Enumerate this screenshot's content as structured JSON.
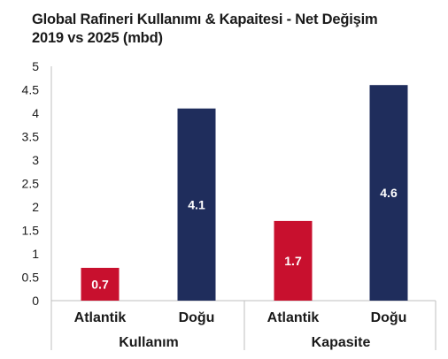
{
  "title_line1": "Global Rafineri Kullanımı & Kapaitesi - Net Değişim",
  "title_line2": "2019 vs 2025 (mbd)",
  "colors": {
    "atlantik": "#c8102e",
    "dogu": "#1f2d5c",
    "axis": "#bfbfbf"
  },
  "chart_data": {
    "type": "bar",
    "title": "Global Rafineri Kullanımı & Kapaitesi - Net Değişim",
    "subtitle": "2019 vs 2025 (mbd)",
    "ylim": [
      0,
      5
    ],
    "yticks": [
      "0",
      "0.5",
      "1",
      "1.5",
      "2",
      "2.5",
      "3",
      "3.5",
      "4",
      "4.5",
      "5"
    ],
    "grid": false,
    "groups": [
      {
        "name": "Kullanım",
        "categories": [
          "Atlantik",
          "Doğu"
        ],
        "values": [
          0.7,
          4.1
        ],
        "labels": [
          "0.7",
          "4.1"
        ]
      },
      {
        "name": "Kapasite",
        "categories": [
          "Atlantik",
          "Doğu"
        ],
        "values": [
          1.7,
          4.6
        ],
        "labels": [
          "1.7",
          "4.6"
        ]
      }
    ]
  }
}
